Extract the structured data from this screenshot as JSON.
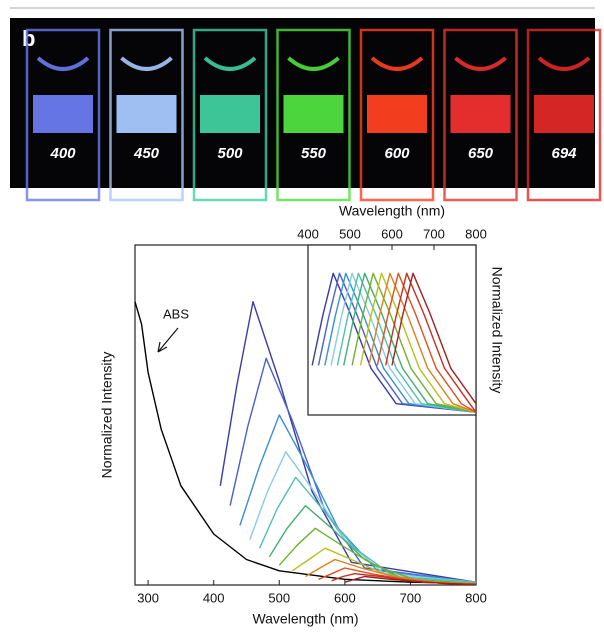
{
  "photo": {
    "label": "b",
    "samples": [
      "400",
      "450",
      "500",
      "550",
      "600",
      "650",
      "694"
    ],
    "colors": [
      "#6a7cf0",
      "#a8c8ff",
      "#40d0a0",
      "#50e040",
      "#ff4020",
      "#f03030",
      "#e02828"
    ]
  },
  "chart_data": [
    {
      "type": "line",
      "xlabel": "Wavelength (nm)",
      "ylabel": "Normalized Intensity",
      "annotation": "ABS",
      "xlim": [
        280,
        800
      ],
      "xticks": [
        300,
        400,
        500,
        600,
        700,
        800
      ],
      "ylim": [
        0,
        1.2
      ],
      "xaxis": "bottom",
      "series": [
        {
          "name": "ABS",
          "color": "#000000",
          "x": [
            280,
            290,
            300,
            320,
            350,
            400,
            450,
            500,
            600,
            700,
            800
          ],
          "values": [
            1.0,
            0.92,
            0.75,
            0.55,
            0.35,
            0.18,
            0.09,
            0.05,
            0.02,
            0.01,
            0.005
          ]
        },
        {
          "color": "#3a3aa8",
          "x": [
            410,
            435,
            460,
            500,
            550,
            610,
            800
          ],
          "values": [
            0.35,
            0.7,
            1.0,
            0.72,
            0.33,
            0.08,
            0.01
          ]
        },
        {
          "color": "#4862c8",
          "x": [
            425,
            452,
            480,
            520,
            570,
            630,
            800
          ],
          "values": [
            0.28,
            0.56,
            0.8,
            0.58,
            0.26,
            0.06,
            0.01
          ]
        },
        {
          "color": "#3a90d0",
          "x": [
            440,
            470,
            500,
            540,
            590,
            650,
            800
          ],
          "values": [
            0.21,
            0.42,
            0.6,
            0.43,
            0.2,
            0.05,
            0.01
          ]
        },
        {
          "color": "#88cce6",
          "x": [
            455,
            482,
            510,
            550,
            600,
            660,
            800
          ],
          "values": [
            0.16,
            0.33,
            0.47,
            0.34,
            0.16,
            0.04,
            0.01
          ]
        },
        {
          "color": "#50c0b0",
          "x": [
            470,
            497,
            525,
            565,
            615,
            675,
            800
          ],
          "values": [
            0.13,
            0.27,
            0.38,
            0.27,
            0.13,
            0.03,
            0.01
          ]
        },
        {
          "color": "#40b070",
          "x": [
            485,
            512,
            540,
            580,
            630,
            690,
            800
          ],
          "values": [
            0.1,
            0.2,
            0.28,
            0.2,
            0.09,
            0.02,
            0.005
          ]
        },
        {
          "color": "#70b030",
          "x": [
            500,
            527,
            555,
            595,
            645,
            705,
            800
          ],
          "values": [
            0.07,
            0.14,
            0.2,
            0.14,
            0.07,
            0.02,
            0.005
          ]
        },
        {
          "color": "#b8c020",
          "x": [
            520,
            545,
            570,
            610,
            660,
            720,
            800
          ],
          "values": [
            0.05,
            0.09,
            0.13,
            0.09,
            0.04,
            0.01,
            0.005
          ]
        },
        {
          "color": "#e08020",
          "x": [
            540,
            562,
            585,
            625,
            675,
            735,
            800
          ],
          "values": [
            0.03,
            0.06,
            0.09,
            0.06,
            0.03,
            0.01,
            0.004
          ]
        },
        {
          "color": "#e05020",
          "x": [
            560,
            580,
            600,
            640,
            690,
            750,
            800
          ],
          "values": [
            0.02,
            0.04,
            0.06,
            0.04,
            0.02,
            0.005,
            0.003
          ]
        },
        {
          "color": "#c83020",
          "x": [
            580,
            597,
            615,
            655,
            705,
            765,
            800
          ],
          "values": [
            0.015,
            0.03,
            0.04,
            0.03,
            0.013,
            0.004,
            0.002
          ]
        },
        {
          "color": "#a02020",
          "x": [
            600,
            615,
            630,
            670,
            720,
            780,
            800
          ],
          "values": [
            0.01,
            0.02,
            0.03,
            0.02,
            0.01,
            0.003,
            0.002
          ]
        }
      ]
    },
    {
      "type": "line",
      "xlabel": "Wavelength (nm)",
      "ylabel": "Normalized Intensity",
      "xlim": [
        400,
        800
      ],
      "xticks": [
        400,
        500,
        600,
        700,
        800
      ],
      "ylim": [
        0,
        1.2
      ],
      "xaxis": "top",
      "series": [
        {
          "color": "#3a3aa8",
          "x": [
            410,
            435,
            460,
            500,
            550,
            610,
            800
          ],
          "values": [
            0.35,
            0.7,
            1,
            0.72,
            0.33,
            0.08,
            0.02
          ]
        },
        {
          "color": "#4862c8",
          "x": [
            425,
            450,
            475,
            515,
            565,
            625,
            800
          ],
          "values": [
            0.35,
            0.7,
            1,
            0.72,
            0.33,
            0.08,
            0.02
          ]
        },
        {
          "color": "#3a90d0",
          "x": [
            440,
            465,
            490,
            530,
            580,
            640,
            800
          ],
          "values": [
            0.35,
            0.7,
            1,
            0.72,
            0.33,
            0.08,
            0.02
          ]
        },
        {
          "color": "#88cce6",
          "x": [
            455,
            480,
            505,
            545,
            595,
            655,
            800
          ],
          "values": [
            0.35,
            0.7,
            1,
            0.72,
            0.33,
            0.08,
            0.02
          ]
        },
        {
          "color": "#50c0b0",
          "x": [
            470,
            495,
            520,
            560,
            610,
            670,
            800
          ],
          "values": [
            0.35,
            0.7,
            1,
            0.72,
            0.33,
            0.08,
            0.02
          ]
        },
        {
          "color": "#40b070",
          "x": [
            485,
            510,
            535,
            575,
            625,
            685,
            800
          ],
          "values": [
            0.35,
            0.7,
            1,
            0.72,
            0.33,
            0.08,
            0.02
          ]
        },
        {
          "color": "#70b030",
          "x": [
            505,
            530,
            555,
            595,
            645,
            705,
            800
          ],
          "values": [
            0.35,
            0.7,
            1,
            0.72,
            0.33,
            0.08,
            0.02
          ]
        },
        {
          "color": "#b8c020",
          "x": [
            525,
            550,
            575,
            615,
            665,
            725,
            800
          ],
          "values": [
            0.35,
            0.7,
            1,
            0.72,
            0.33,
            0.08,
            0.02
          ]
        },
        {
          "color": "#e08020",
          "x": [
            545,
            570,
            595,
            635,
            685,
            745,
            800
          ],
          "values": [
            0.35,
            0.7,
            1,
            0.72,
            0.33,
            0.08,
            0.02
          ]
        },
        {
          "color": "#e05020",
          "x": [
            565,
            590,
            615,
            655,
            705,
            765,
            800
          ],
          "values": [
            0.35,
            0.7,
            1,
            0.72,
            0.33,
            0.08,
            0.02
          ]
        },
        {
          "color": "#c83020",
          "x": [
            585,
            610,
            635,
            675,
            725,
            785,
            800
          ],
          "values": [
            0.35,
            0.7,
            1,
            0.72,
            0.33,
            0.08,
            0.02
          ]
        },
        {
          "color": "#a02020",
          "x": [
            600,
            625,
            650,
            690,
            740,
            800
          ],
          "values": [
            0.35,
            0.7,
            1,
            0.72,
            0.33,
            0.08
          ]
        }
      ]
    }
  ]
}
